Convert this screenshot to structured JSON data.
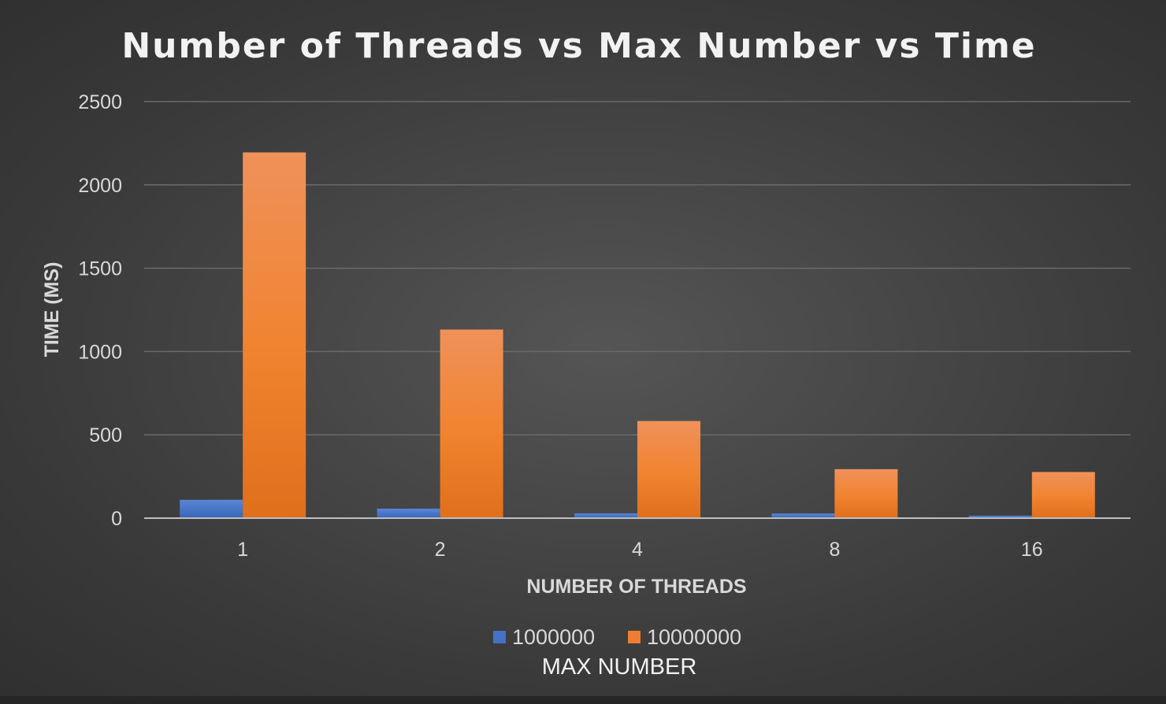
{
  "chart_data": {
    "type": "bar",
    "title": "Number of Threads vs Max Number vs Time",
    "xlabel": "NUMBER OF THREADS",
    "ylabel": "TIME (MS)",
    "categories": [
      "1",
      "2",
      "4",
      "8",
      "16"
    ],
    "series": [
      {
        "name": "1000000",
        "values": [
          110,
          57,
          29,
          28,
          15
        ],
        "color": "#4472c4"
      },
      {
        "name": "10000000",
        "values": [
          2195,
          1132,
          583,
          294,
          277
        ],
        "color": "#ed7d31"
      }
    ],
    "ylim": [
      0,
      2500
    ],
    "yticks": [
      0,
      500,
      1000,
      1500,
      2000,
      2500
    ],
    "grid": true,
    "legend": {
      "title": "MAX NUMBER",
      "position": "bottom"
    }
  }
}
